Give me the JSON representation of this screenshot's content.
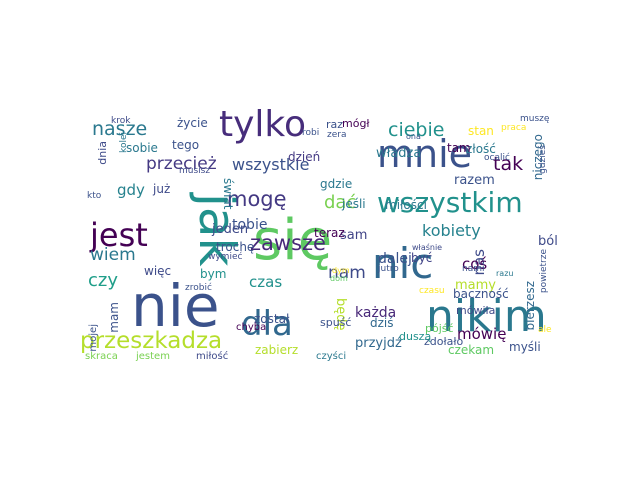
{
  "word_cloud": {
    "words": [
      {
        "text": "nie",
        "color": "#3b528b"
      },
      {
        "text": "się",
        "color": "#5ec962"
      },
      {
        "text": "jak",
        "color": "#21918c"
      },
      {
        "text": "nikim",
        "color": "#2a788e"
      },
      {
        "text": "mnie",
        "color": "#3b528b"
      },
      {
        "text": "nic",
        "color": "#31688e"
      },
      {
        "text": "tylko",
        "color": "#472d7b"
      },
      {
        "text": "wszystkim",
        "color": "#21918c"
      },
      {
        "text": "dla",
        "color": "#31688e"
      },
      {
        "text": "jest",
        "color": "#440154"
      },
      {
        "text": "przeszkadza",
        "color": "#b5de2b"
      },
      {
        "text": "zawsze",
        "color": "#482878"
      },
      {
        "text": "mogę",
        "color": "#443983"
      },
      {
        "text": "ciebie",
        "color": "#21918c"
      },
      {
        "text": "kobiety",
        "color": "#26828e"
      },
      {
        "text": "nasze",
        "color": "#2a788e"
      },
      {
        "text": "tak",
        "color": "#440154"
      },
      {
        "text": "dać",
        "color": "#7ad151"
      },
      {
        "text": "wiem",
        "color": "#2a788e"
      },
      {
        "text": "czy",
        "color": "#1f9e89"
      },
      {
        "text": "wszystkie",
        "color": "#3b528b"
      },
      {
        "text": "przecież",
        "color": "#443983"
      },
      {
        "text": "nam",
        "color": "#3e4a89"
      },
      {
        "text": "nas",
        "color": "#3e4a89"
      },
      {
        "text": "coś",
        "color": "#440154"
      },
      {
        "text": "ból",
        "color": "#3e4a89"
      },
      {
        "text": "mówię",
        "color": "#440154"
      },
      {
        "text": "gdy",
        "color": "#26828e"
      },
      {
        "text": "tobie",
        "color": "#3b528b"
      },
      {
        "text": "dalej",
        "color": "#3b528b"
      },
      {
        "text": "razem",
        "color": "#3b528b"
      },
      {
        "text": "władza",
        "color": "#2a788e"
      },
      {
        "text": "każda",
        "color": "#482878"
      },
      {
        "text": "czas",
        "color": "#21918c"
      },
      {
        "text": "mamy",
        "color": "#b5de2b"
      },
      {
        "text": "jeden",
        "color": "#3e4a89"
      },
      {
        "text": "mam",
        "color": "#3b528b"
      },
      {
        "text": "bierzesz",
        "color": "#31688e"
      },
      {
        "text": "niczego",
        "color": "#31688e"
      },
      {
        "text": "będę",
        "color": "#b5de2b"
      },
      {
        "text": "sam",
        "color": "#414487"
      },
      {
        "text": "przyjdź",
        "color": "#31688e"
      },
      {
        "text": "dziś",
        "color": "#31688e"
      },
      {
        "text": "zabierz",
        "color": "#b5de2b"
      },
      {
        "text": "stan",
        "color": "#fde725"
      },
      {
        "text": "życie",
        "color": "#3b528b"
      },
      {
        "text": "świat",
        "color": "#2a788e"
      },
      {
        "text": "złość",
        "color": "#2a788e"
      },
      {
        "text": "sobie",
        "color": "#2a788e"
      },
      {
        "text": "tego",
        "color": "#3b528b"
      },
      {
        "text": "już",
        "color": "#3e4a89"
      },
      {
        "text": "być",
        "color": "#414487"
      },
      {
        "text": "gdzie",
        "color": "#2a788e"
      },
      {
        "text": "dzień",
        "color": "#443983"
      },
      {
        "text": "raz",
        "color": "#3b528b"
      },
      {
        "text": "mógł",
        "color": "#440154"
      },
      {
        "text": "tam",
        "color": "#440154"
      },
      {
        "text": "jeśli",
        "color": "#2a788e"
      },
      {
        "text": "miłości",
        "color": "#2a788e"
      },
      {
        "text": "teraz",
        "color": "#440154"
      },
      {
        "text": "trochę",
        "color": "#3b528b"
      },
      {
        "text": "więc",
        "color": "#3e4a89"
      },
      {
        "text": "bym",
        "color": "#21918c"
      },
      {
        "text": "został",
        "color": "#3b528b"
      },
      {
        "text": "mówiła",
        "color": "#3e4a89"
      },
      {
        "text": "czekam",
        "color": "#5ec962"
      },
      {
        "text": "myśli",
        "color": "#3b528b"
      },
      {
        "text": "baczność",
        "color": "#3b528b"
      },
      {
        "text": "zdołało",
        "color": "#3b528b"
      },
      {
        "text": "pójść",
        "color": "#5ec962"
      },
      {
        "text": "duszą",
        "color": "#21918c"
      },
      {
        "text": "spuść",
        "color": "#3b528b"
      },
      {
        "text": "chyba",
        "color": "#440154"
      },
      {
        "text": "miłość",
        "color": "#3e4a89"
      },
      {
        "text": "skraca",
        "color": "#7ad151"
      },
      {
        "text": "jestem",
        "color": "#7ad151"
      },
      {
        "text": "czyści",
        "color": "#2a788e"
      },
      {
        "text": "robi",
        "color": "#3b528b"
      },
      {
        "text": "zera",
        "color": "#3b528b"
      },
      {
        "text": "ona",
        "color": "#3b528b"
      },
      {
        "text": "praca",
        "color": "#fde725"
      },
      {
        "text": "muszę",
        "color": "#3b528b"
      },
      {
        "text": "krok",
        "color": "#3e4a89"
      },
      {
        "text": "kolei",
        "color": "#2a788e"
      },
      {
        "text": "dnia",
        "color": "#3e4a89"
      },
      {
        "text": "musisz",
        "color": "#3e4a89"
      },
      {
        "text": "kto",
        "color": "#3b528b"
      },
      {
        "text": "ocalić",
        "color": "#3b528b"
      },
      {
        "text": "gdzieś",
        "color": "#3b528b"
      },
      {
        "text": "wymieć",
        "color": "#3e4a89"
      },
      {
        "text": "zrobić",
        "color": "#3b528b"
      },
      {
        "text": "dym",
        "color": "#fde725"
      },
      {
        "text": "czasu",
        "color": "#fde725"
      },
      {
        "text": "jutro",
        "color": "#3b528b"
      },
      {
        "text": "nami",
        "color": "#3b528b"
      },
      {
        "text": "razu",
        "color": "#2a788e"
      },
      {
        "text": "właśnie",
        "color": "#3e4a89"
      },
      {
        "text": "powietrze",
        "color": "#3b528b"
      },
      {
        "text": "ale",
        "color": "#fde725"
      },
      {
        "text": "mojej",
        "color": "#3b528b"
      },
      {
        "text": "dom",
        "color": "#5ec962"
      }
    ]
  }
}
